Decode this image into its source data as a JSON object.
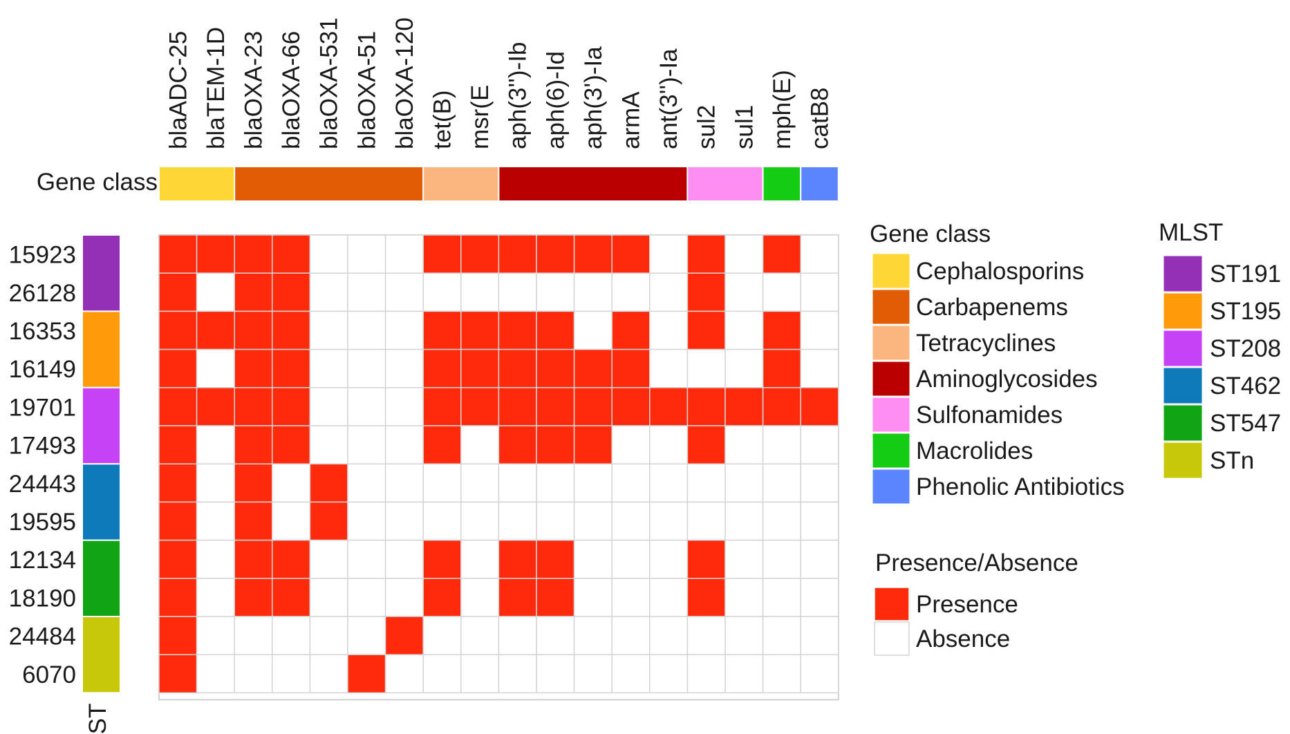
{
  "chart_data": {
    "type": "heatmap",
    "genes": [
      "blaADC-25",
      "blaTEM-1D",
      "blaOXA-23",
      "blaOXA-66",
      "blaOXA-531",
      "blaOXA-51",
      "blaOXA-120",
      "tet(B)",
      "msr(E",
      "aph(3'')-Ib",
      "aph(6)-Id",
      "aph(3')-Ia",
      "armA",
      "ant(3'')-Ia",
      "sul2",
      "sul1",
      "mph(E)",
      "catB8"
    ],
    "gene_class_row_label": "Gene class",
    "gene_class_assignment": [
      "Cephalosporins",
      "Cephalosporins",
      "Carbapenems",
      "Carbapenems",
      "Carbapenems",
      "Carbapenems",
      "Carbapenems",
      "Tetracyclines",
      "Tetracyclines",
      "Aminoglycosides",
      "Aminoglycosides",
      "Aminoglycosides",
      "Aminoglycosides",
      "Aminoglycosides",
      "Sulfonamides",
      "Sulfonamides",
      "Macrolides",
      "Phenolic Antibiotics"
    ],
    "samples": [
      "15923",
      "26128",
      "16353",
      "16149",
      "19701",
      "17493",
      "24443",
      "19595",
      "12134",
      "18190",
      "24484",
      "6070"
    ],
    "sample_st": [
      "ST191",
      "ST191",
      "ST195",
      "ST195",
      "ST208",
      "ST208",
      "ST462",
      "ST462",
      "ST547",
      "ST547",
      "STn",
      "STn"
    ],
    "st_axis_label": "ST",
    "matrix": [
      [
        1,
        1,
        1,
        1,
        0,
        0,
        0,
        1,
        1,
        1,
        1,
        1,
        1,
        0,
        1,
        0,
        1,
        0
      ],
      [
        1,
        0,
        1,
        1,
        0,
        0,
        0,
        0,
        0,
        0,
        0,
        0,
        0,
        0,
        1,
        0,
        0,
        0
      ],
      [
        1,
        1,
        1,
        1,
        0,
        0,
        0,
        1,
        1,
        1,
        1,
        0,
        1,
        0,
        1,
        0,
        1,
        0
      ],
      [
        1,
        0,
        1,
        1,
        0,
        0,
        0,
        1,
        1,
        1,
        1,
        1,
        1,
        0,
        0,
        0,
        1,
        0
      ],
      [
        1,
        1,
        1,
        1,
        0,
        0,
        0,
        1,
        1,
        1,
        1,
        1,
        1,
        1,
        1,
        1,
        1,
        1
      ],
      [
        1,
        0,
        1,
        1,
        0,
        0,
        0,
        1,
        0,
        1,
        1,
        1,
        0,
        0,
        1,
        0,
        0,
        0
      ],
      [
        1,
        0,
        1,
        0,
        1,
        0,
        0,
        0,
        0,
        0,
        0,
        0,
        0,
        0,
        0,
        0,
        0,
        0
      ],
      [
        1,
        0,
        1,
        0,
        1,
        0,
        0,
        0,
        0,
        0,
        0,
        0,
        0,
        0,
        0,
        0,
        0,
        0
      ],
      [
        1,
        0,
        1,
        1,
        0,
        0,
        0,
        1,
        0,
        1,
        1,
        0,
        0,
        0,
        1,
        0,
        0,
        0
      ],
      [
        1,
        0,
        1,
        1,
        0,
        0,
        0,
        1,
        0,
        1,
        1,
        0,
        0,
        0,
        1,
        0,
        0,
        0
      ],
      [
        1,
        0,
        0,
        0,
        0,
        0,
        1,
        0,
        0,
        0,
        0,
        0,
        0,
        0,
        0,
        0,
        0,
        0
      ],
      [
        1,
        0,
        0,
        0,
        0,
        1,
        0,
        0,
        0,
        0,
        0,
        0,
        0,
        0,
        0,
        0,
        0,
        0
      ]
    ],
    "legend_gene_class": {
      "title": "Gene class",
      "items": [
        {
          "name": "Cephalosporins",
          "color": "#FDD835"
        },
        {
          "name": "Carbapenems",
          "color": "#E25C05"
        },
        {
          "name": "Tetracyclines",
          "color": "#FBB67F"
        },
        {
          "name": "Aminoglycosides",
          "color": "#B80000"
        },
        {
          "name": "Sulfonamides",
          "color": "#FF8EF2"
        },
        {
          "name": "Macrolides",
          "color": "#13CC13"
        },
        {
          "name": "Phenolic Antibiotics",
          "color": "#5B84FF"
        }
      ]
    },
    "legend_mlst": {
      "title": "MLST",
      "items": [
        {
          "name": "ST191",
          "color": "#9430B5"
        },
        {
          "name": "ST195",
          "color": "#FF9A0A"
        },
        {
          "name": "ST208",
          "color": "#C642F5"
        },
        {
          "name": "ST462",
          "color": "#0E7ABA"
        },
        {
          "name": "ST547",
          "color": "#11A515"
        },
        {
          "name": "STn",
          "color": "#C7C80A"
        }
      ]
    },
    "legend_presence": {
      "title": "Presence/Absence",
      "items": [
        {
          "name": "Presence",
          "value": 1,
          "color": "#FF2A0B"
        },
        {
          "name": "Absence",
          "value": 0,
          "color": "#FFFFFF"
        }
      ]
    }
  }
}
